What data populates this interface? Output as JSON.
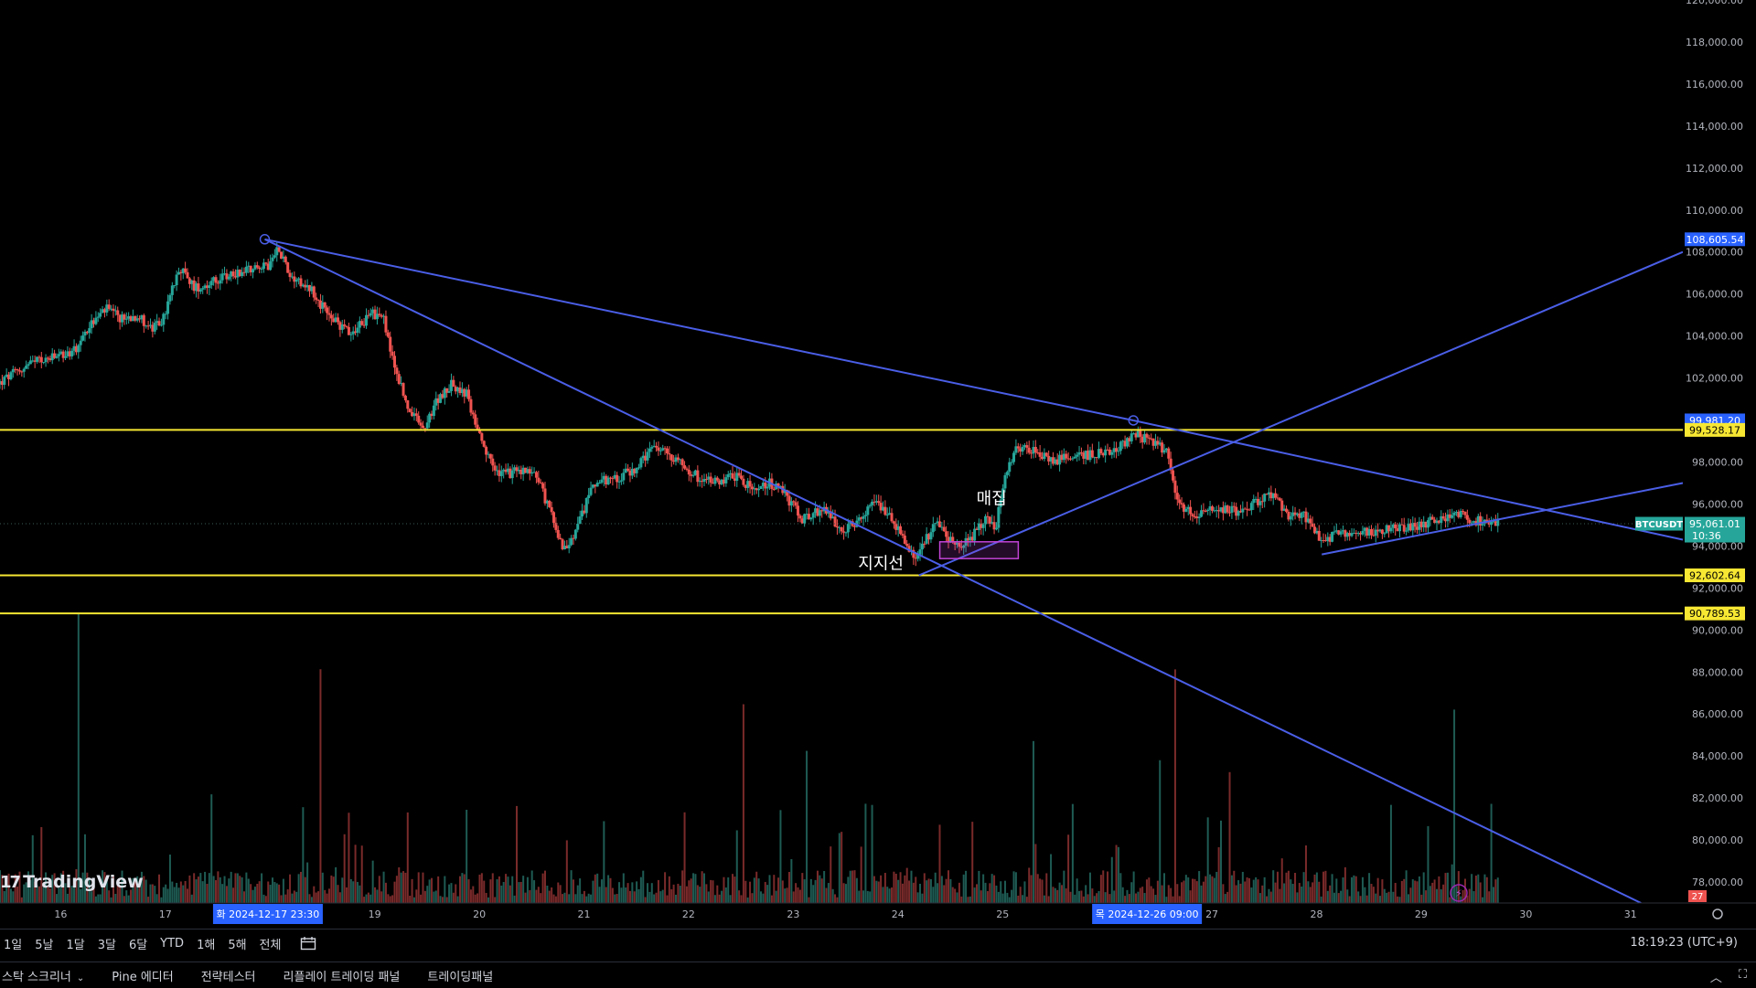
{
  "chart_data": {
    "type": "candlestick",
    "symbol": "BTCUSDT",
    "x_ticks": [
      "16",
      "17",
      "19",
      "20",
      "21",
      "22",
      "23",
      "24",
      "25",
      "27",
      "28",
      "29",
      "30",
      "31"
    ],
    "x_tick_positions_days": [
      16,
      17,
      19,
      20,
      21,
      22,
      23,
      24,
      25,
      27,
      28,
      29,
      30,
      31
    ],
    "x_range_days": [
      15.42,
      31.5
    ],
    "y_range": [
      77000,
      120000
    ],
    "y_ticks": [
      120000,
      118000,
      116000,
      114000,
      112000,
      110000,
      108000,
      106000,
      104000,
      102000,
      100000,
      98000,
      96000,
      94000,
      92000,
      90000,
      88000,
      86000,
      84000,
      82000,
      80000,
      78000
    ],
    "y_tick_labels": [
      "120,000.00",
      "118,000.00",
      "116,000.00",
      "114,000.00",
      "112,000.00",
      "110,000.00",
      "108,000.00",
      "106,000.00",
      "104,000.00",
      "102,000.00",
      "100,000.00",
      "98,000.00",
      "96,000.00",
      "94,000.00",
      "92,000.00",
      "90,000.00",
      "88,000.00",
      "86,000.00",
      "84,000.00",
      "82,000.00",
      "80,000.00",
      "78,000.00"
    ],
    "price_path": [
      [
        15.42,
        101700
      ],
      [
        15.6,
        102300
      ],
      [
        15.8,
        102800
      ],
      [
        16.0,
        103000
      ],
      [
        16.15,
        103300
      ],
      [
        16.3,
        104500
      ],
      [
        16.45,
        105300
      ],
      [
        16.6,
        104800
      ],
      [
        16.75,
        105000
      ],
      [
        16.9,
        104300
      ],
      [
        17.0,
        104800
      ],
      [
        17.15,
        107300
      ],
      [
        17.3,
        106300
      ],
      [
        17.5,
        106600
      ],
      [
        17.7,
        107000
      ],
      [
        17.9,
        107400
      ],
      [
        18.0,
        107200
      ],
      [
        18.1,
        108300
      ],
      [
        18.2,
        107000
      ],
      [
        18.4,
        106300
      ],
      [
        18.6,
        104800
      ],
      [
        18.8,
        104200
      ],
      [
        19.0,
        105100
      ],
      [
        19.1,
        104900
      ],
      [
        19.2,
        102700
      ],
      [
        19.35,
        100400
      ],
      [
        19.5,
        99500
      ],
      [
        19.6,
        100800
      ],
      [
        19.75,
        101700
      ],
      [
        19.9,
        101200
      ],
      [
        20.05,
        98700
      ],
      [
        20.2,
        97400
      ],
      [
        20.35,
        97500
      ],
      [
        20.55,
        97600
      ],
      [
        20.7,
        95600
      ],
      [
        20.85,
        93600
      ],
      [
        21.0,
        95400
      ],
      [
        21.1,
        97000
      ],
      [
        21.3,
        97200
      ],
      [
        21.5,
        97600
      ],
      [
        21.7,
        98700
      ],
      [
        21.9,
        98200
      ],
      [
        22.1,
        97300
      ],
      [
        22.3,
        97100
      ],
      [
        22.5,
        97400
      ],
      [
        22.65,
        96500
      ],
      [
        22.8,
        97000
      ],
      [
        22.95,
        96400
      ],
      [
        23.1,
        95300
      ],
      [
        23.3,
        95700
      ],
      [
        23.5,
        94800
      ],
      [
        23.65,
        95200
      ],
      [
        23.8,
        96000
      ],
      [
        23.95,
        95500
      ],
      [
        24.1,
        94000
      ],
      [
        24.2,
        93300
      ],
      [
        24.3,
        94400
      ],
      [
        24.4,
        95200
      ],
      [
        24.55,
        94000
      ],
      [
        24.7,
        94200
      ],
      [
        24.85,
        95300
      ],
      [
        24.95,
        94800
      ],
      [
        25.05,
        97300
      ],
      [
        25.15,
        98800
      ],
      [
        25.3,
        98600
      ],
      [
        25.5,
        98100
      ],
      [
        25.7,
        98200
      ],
      [
        25.9,
        98400
      ],
      [
        26.1,
        98600
      ],
      [
        26.3,
        99300
      ],
      [
        26.5,
        98800
      ],
      [
        26.6,
        98500
      ],
      [
        26.7,
        96000
      ],
      [
        26.85,
        95500
      ],
      [
        27.05,
        95900
      ],
      [
        27.25,
        95600
      ],
      [
        27.45,
        96100
      ],
      [
        27.6,
        96500
      ],
      [
        27.75,
        95500
      ],
      [
        27.9,
        95400
      ],
      [
        28.05,
        94300
      ],
      [
        28.2,
        94500
      ],
      [
        28.4,
        94600
      ],
      [
        28.6,
        94700
      ],
      [
        28.8,
        94800
      ],
      [
        29.0,
        95000
      ],
      [
        29.2,
        95300
      ],
      [
        29.4,
        95500
      ],
      [
        29.5,
        95200
      ],
      [
        29.75,
        95100
      ]
    ],
    "current_price": "95,061.01",
    "current_price_value": 95061.01,
    "countdown": "10:36",
    "horizontal_levels": [
      {
        "value": 99528.17,
        "label": "99,528.17"
      },
      {
        "value": 92602.64,
        "label": "92,602.64"
      },
      {
        "value": 90789.53,
        "label": "90,789.53"
      }
    ],
    "price_tags": [
      {
        "value": 108605.54,
        "label": "108,605.54"
      },
      {
        "value": 99981.2,
        "label": "99,981.20"
      }
    ],
    "volume_badge": "27",
    "trendlines": [
      {
        "from": [
          17.95,
          108605.54
        ],
        "to": [
          26.25,
          99981.2
        ]
      },
      {
        "from": [
          26.25,
          99981.2
        ],
        "to": [
          31.5,
          94300
        ]
      },
      {
        "from": [
          17.95,
          108605.54
        ],
        "to": [
          31.1,
          77000
        ]
      },
      {
        "from": [
          24.2,
          92602.64
        ],
        "to": [
          31.5,
          108000
        ]
      },
      {
        "from": [
          28.05,
          93600
        ],
        "to": [
          31.5,
          97000
        ]
      }
    ],
    "anchor_points": [
      [
        17.95,
        108605.54
      ],
      [
        26.25,
        99981.2
      ]
    ],
    "rect": {
      "from": [
        24.4,
        94200
      ],
      "to": [
        25.15,
        93400
      ]
    },
    "annotations": [
      {
        "text": "지지선",
        "at": [
          23.62,
          92900
        ]
      },
      {
        "text": "매집",
        "at": [
          24.75,
          96000
        ]
      }
    ],
    "crosshair_labels": [
      {
        "text": "화 2024-12-17   23:30",
        "at_day": 17.98
      },
      {
        "text": "목 2024-12-26   09:00",
        "at_day": 26.38
      }
    ],
    "colors": {
      "bg": "#000000",
      "up": "#26a69a",
      "down": "#ef5350",
      "trendline": "#4a5ee6",
      "level": "#f7e733",
      "rect": "#c244d6",
      "axis_tag_blue": "#2962ff",
      "price_tag": "#26a69a"
    }
  },
  "toolbar": {
    "ranges": [
      "1일",
      "5날",
      "1달",
      "3달",
      "6달",
      "YTD",
      "1해",
      "5해",
      "전체"
    ],
    "clock": "18:19:23 (UTC+9)"
  },
  "footer": {
    "tabs": [
      "스탁 스크리너",
      "Pine 에디터",
      "전략테스터",
      "리플레이 트레이딩 패널",
      "트레이딩패널"
    ]
  },
  "brand": {
    "name": "TradingView"
  }
}
